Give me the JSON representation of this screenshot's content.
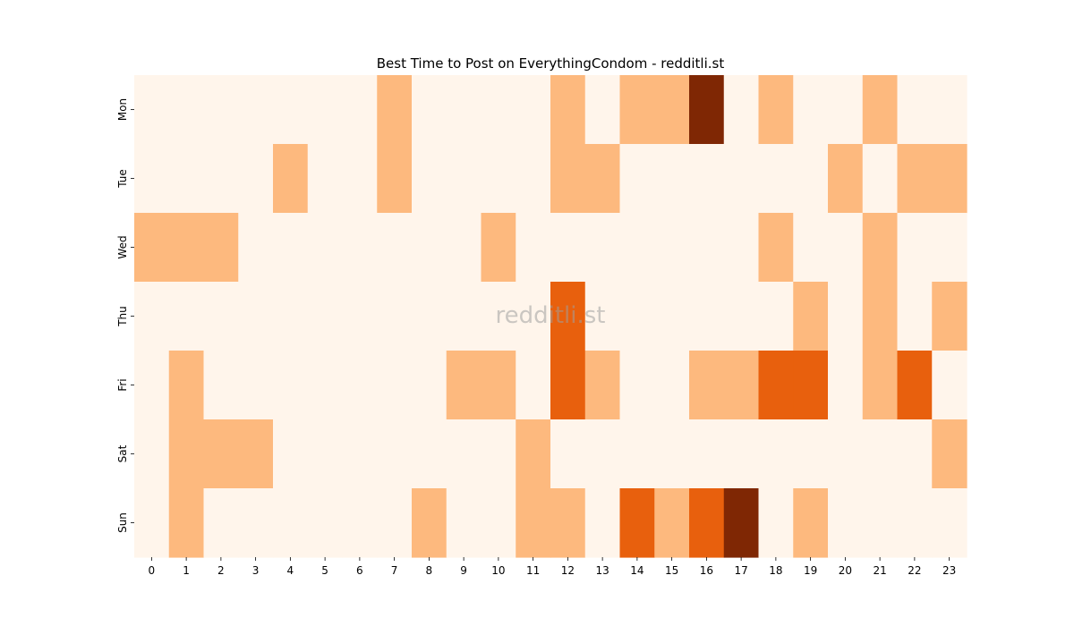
{
  "chart_data": {
    "type": "heatmap",
    "title": "Best Time to Post on EverythingCondom - redditli.st",
    "watermark": "redditli.st",
    "xlabel": "",
    "ylabel": "",
    "x": [
      "0",
      "1",
      "2",
      "3",
      "4",
      "5",
      "6",
      "7",
      "8",
      "9",
      "10",
      "11",
      "12",
      "13",
      "14",
      "15",
      "16",
      "17",
      "18",
      "19",
      "20",
      "21",
      "22",
      "23"
    ],
    "y": [
      "Mon",
      "Tue",
      "Wed",
      "Thu",
      "Fri",
      "Sat",
      "Sun"
    ],
    "values": [
      [
        0,
        0,
        0,
        0,
        0,
        0,
        0,
        1,
        0,
        0,
        0,
        0,
        1,
        0,
        1,
        1,
        3,
        0,
        1,
        0,
        0,
        1,
        0,
        0
      ],
      [
        0,
        0,
        0,
        0,
        1,
        0,
        0,
        1,
        0,
        0,
        0,
        0,
        1,
        1,
        0,
        0,
        0,
        0,
        0,
        0,
        1,
        0,
        1,
        1
      ],
      [
        1,
        1,
        1,
        0,
        0,
        0,
        0,
        0,
        0,
        0,
        1,
        0,
        0,
        0,
        0,
        0,
        0,
        0,
        1,
        0,
        0,
        1,
        0,
        0
      ],
      [
        0,
        0,
        0,
        0,
        0,
        0,
        0,
        0,
        0,
        0,
        0,
        0,
        2,
        0,
        0,
        0,
        0,
        0,
        0,
        1,
        0,
        1,
        0,
        1
      ],
      [
        0,
        1,
        0,
        0,
        0,
        0,
        0,
        0,
        0,
        1,
        1,
        0,
        2,
        1,
        0,
        0,
        1,
        1,
        2,
        2,
        0,
        1,
        2,
        0
      ],
      [
        0,
        1,
        1,
        1,
        0,
        0,
        0,
        0,
        0,
        0,
        0,
        1,
        0,
        0,
        0,
        0,
        0,
        0,
        0,
        0,
        0,
        0,
        0,
        1
      ],
      [
        0,
        1,
        0,
        0,
        0,
        0,
        0,
        0,
        1,
        0,
        0,
        1,
        1,
        0,
        2,
        1,
        2,
        3,
        0,
        1,
        0,
        0,
        0,
        0
      ]
    ],
    "colorscale": [
      "#fff5eb",
      "#fdb97e",
      "#e8600d",
      "#7f2704"
    ],
    "grid": false,
    "legend": "none"
  }
}
